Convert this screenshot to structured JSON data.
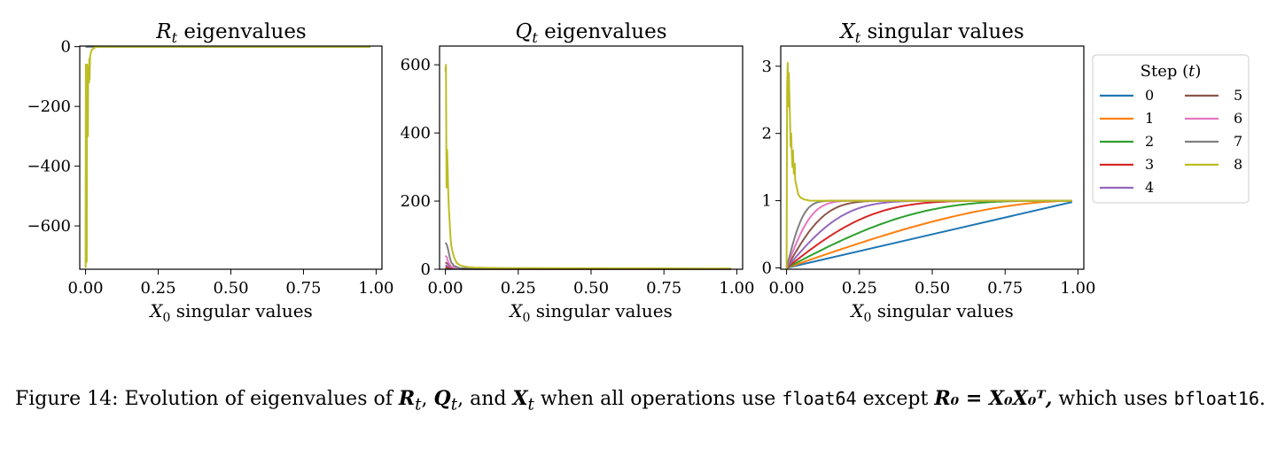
{
  "figure": {
    "caption": {
      "label": "Figure 14:",
      "text_1": "Evolution of eigenvalues of",
      "sym_r": "R",
      "sub_t1": "t",
      "sep_1": ",",
      "sym_q": "Q",
      "sub_t2": "t",
      "sep_2": ", and",
      "sym_x": "X",
      "sub_t3": "t",
      "text_2": "when all operations use",
      "code_1": "float64",
      "text_3": "except",
      "eq": "R₀ = X₀X₀ᵀ,",
      "text_4": "which uses",
      "code_2": "bfloat16",
      "end": "."
    }
  },
  "chart_data": [
    {
      "type": "line",
      "title": "Rt eigenvalues",
      "title_main": "R",
      "title_sub": "t",
      "title_rest": " eigenvalues",
      "xlabel_main": "X",
      "xlabel_sub": "0",
      "xlabel_rest": " singular values",
      "xlim": [
        -0.02,
        1.02
      ],
      "ylim": [
        -745,
        2
      ],
      "xticks": [
        0.0,
        0.25,
        0.5,
        0.75,
        1.0
      ],
      "xtick_labels": [
        "0.00",
        "0.25",
        "0.50",
        "0.75",
        "1.00"
      ],
      "yticks": [
        0,
        -200,
        -400,
        -600
      ],
      "ytick_labels": [
        "0",
        "−200",
        "−400",
        "−600"
      ],
      "series": [
        {
          "step": 0,
          "color": "#1f77b4",
          "x": [
            0,
            0.98
          ],
          "y": [
            0,
            0
          ]
        },
        {
          "step": 7,
          "color": "#7f7f7f",
          "x": [
            0,
            0.98
          ],
          "y": [
            0,
            0
          ]
        },
        {
          "step": 8,
          "color": "#bcbd22",
          "x": [
            0,
            0.001,
            0.002,
            0.003,
            0.004,
            0.005,
            0.006,
            0.007,
            0.008,
            0.009,
            0.01,
            0.011,
            0.012,
            0.013,
            0.014,
            0.015,
            0.016,
            0.018,
            0.02,
            0.022,
            0.025,
            0.028,
            0.032,
            0.036,
            0.04,
            0.05,
            0.06,
            0.08,
            0.1,
            0.98
          ],
          "y": [
            -740,
            -60,
            -300,
            -80,
            -720,
            -120,
            -60,
            -200,
            -300,
            -90,
            -100,
            -70,
            -120,
            -40,
            -110,
            -50,
            -30,
            -20,
            -15,
            -10,
            -8,
            -5,
            -3,
            -2,
            -1,
            -0.5,
            0,
            0,
            0,
            0
          ]
        }
      ]
    },
    {
      "type": "line",
      "title": "Qt eigenvalues",
      "title_main": "Q",
      "title_sub": "t",
      "title_rest": " eigenvalues",
      "xlabel_main": "X",
      "xlabel_sub": "0",
      "xlabel_rest": " singular values",
      "xlim": [
        -0.02,
        1.02
      ],
      "ylim": [
        0,
        655
      ],
      "xticks": [
        0.0,
        0.25,
        0.5,
        0.75,
        1.0
      ],
      "xtick_labels": [
        "0.00",
        "0.25",
        "0.50",
        "0.75",
        "1.00"
      ],
      "yticks": [
        0,
        200,
        400,
        600
      ],
      "ytick_labels": [
        "0",
        "200",
        "400",
        "600"
      ],
      "series": [
        {
          "step": 0,
          "color": "#1f77b4",
          "x": [
            0,
            0.98
          ],
          "y": [
            1,
            1
          ]
        },
        {
          "step": 1,
          "color": "#ff7f0e",
          "x": [
            0,
            0.05,
            0.2,
            0.98
          ],
          "y": [
            2,
            1.5,
            1,
            1
          ]
        },
        {
          "step": 2,
          "color": "#2ca02c",
          "x": [
            0,
            0.03,
            0.1,
            0.98
          ],
          "y": [
            3,
            2,
            1,
            1
          ]
        },
        {
          "step": 3,
          "color": "#d62728",
          "x": [
            0,
            0.02,
            0.06,
            0.98
          ],
          "y": [
            6,
            3,
            1,
            1
          ]
        },
        {
          "step": 4,
          "color": "#9467bd",
          "x": [
            0,
            0.01,
            0.03,
            0.06,
            0.98
          ],
          "y": [
            12,
            8,
            3,
            1,
            1
          ]
        },
        {
          "step": 5,
          "color": "#8c564b",
          "x": [
            0,
            0.01,
            0.02,
            0.05,
            0.98
          ],
          "y": [
            20,
            15,
            6,
            1,
            1
          ]
        },
        {
          "step": 6,
          "color": "#e377c2",
          "x": [
            0,
            0.005,
            0.01,
            0.02,
            0.04,
            0.98
          ],
          "y": [
            40,
            35,
            20,
            8,
            2,
            1
          ]
        },
        {
          "step": 7,
          "color": "#7f7f7f",
          "x": [
            0,
            0.005,
            0.01,
            0.015,
            0.02,
            0.03,
            0.05,
            0.98
          ],
          "y": [
            78,
            72,
            55,
            35,
            20,
            10,
            3,
            1
          ]
        },
        {
          "step": 8,
          "color": "#bcbd22",
          "x": [
            0,
            0.002,
            0.004,
            0.006,
            0.008,
            0.01,
            0.012,
            0.014,
            0.016,
            0.018,
            0.02,
            0.025,
            0.03,
            0.035,
            0.04,
            0.05,
            0.06,
            0.08,
            0.1,
            0.15,
            0.2,
            0.3,
            0.5,
            0.98
          ],
          "y": [
            580,
            600,
            240,
            350,
            290,
            220,
            180,
            150,
            120,
            90,
            70,
            50,
            35,
            25,
            18,
            12,
            9,
            6,
            5,
            4,
            3.5,
            3,
            2.5,
            2
          ]
        }
      ]
    },
    {
      "type": "line",
      "title": "Xt singular values",
      "title_main": "X",
      "title_sub": "t",
      "title_rest": " singular values",
      "xlabel_main": "X",
      "xlabel_sub": "0",
      "xlabel_rest": " singular values",
      "xlim": [
        -0.02,
        1.02
      ],
      "ylim": [
        -0.02,
        3.3
      ],
      "xticks": [
        0.0,
        0.25,
        0.5,
        0.75,
        1.0
      ],
      "xtick_labels": [
        "0.00",
        "0.25",
        "0.50",
        "0.75",
        "1.00"
      ],
      "yticks": [
        0,
        1,
        2,
        3
      ],
      "ytick_labels": [
        "0",
        "1",
        "2",
        "3"
      ],
      "series": [
        {
          "step": 0,
          "color": "#1f77b4",
          "fn": "linear"
        },
        {
          "step": 1,
          "color": "#ff7f0e",
          "fn": "ns",
          "k": 1
        },
        {
          "step": 2,
          "color": "#2ca02c",
          "fn": "ns",
          "k": 2
        },
        {
          "step": 3,
          "color": "#d62728",
          "fn": "ns",
          "k": 3
        },
        {
          "step": 4,
          "color": "#9467bd",
          "fn": "ns",
          "k": 4
        },
        {
          "step": 5,
          "color": "#8c564b",
          "fn": "ns",
          "k": 5
        },
        {
          "step": 6,
          "color": "#e377c2",
          "fn": "ns",
          "k": 6
        },
        {
          "step": 7,
          "color": "#7f7f7f",
          "fn": "ns",
          "k": 7
        },
        {
          "step": 8,
          "color": "#bcbd22",
          "x": [
            0,
            0.002,
            0.004,
            0.006,
            0.008,
            0.01,
            0.012,
            0.014,
            0.016,
            0.018,
            0.02,
            0.022,
            0.025,
            0.028,
            0.03,
            0.035,
            0.04,
            0.045,
            0.05,
            0.06,
            0.07,
            0.08,
            0.1,
            0.15,
            0.98
          ],
          "y": [
            0,
            2.7,
            3.05,
            2.4,
            2.9,
            2.5,
            2.2,
            1.8,
            2.0,
            1.7,
            1.5,
            1.75,
            1.4,
            1.55,
            1.3,
            1.2,
            1.1,
            1.06,
            1.04,
            1.02,
            1.01,
            1.0,
            1.0,
            1.0,
            1.0
          ]
        }
      ],
      "legend": {
        "title_main": "Step (",
        "title_var": "t",
        "title_end": ")",
        "entries": [
          "0",
          "1",
          "2",
          "3",
          "4",
          "5",
          "6",
          "7",
          "8"
        ],
        "placement": "right, outside plot"
      }
    }
  ]
}
